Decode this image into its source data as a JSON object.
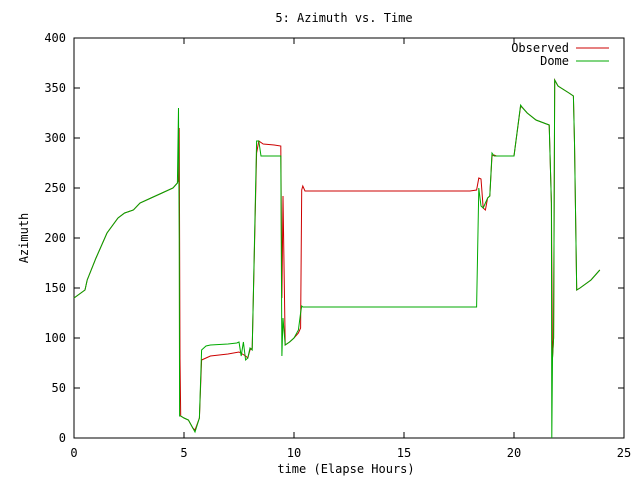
{
  "chart_data": {
    "type": "line",
    "title": "5: Azimuth vs. Time",
    "xlabel": "time (Elapse Hours)",
    "ylabel": "Azimuth",
    "xlim": [
      0,
      25
    ],
    "ylim": [
      0,
      400
    ],
    "xticks": [
      "0",
      "5",
      "10",
      "15",
      "20",
      "25"
    ],
    "yticks": [
      "0",
      "50",
      "100",
      "150",
      "200",
      "250",
      "300",
      "350",
      "400"
    ],
    "grid": false,
    "legend_position": "top-right",
    "series": [
      {
        "name": "Observed",
        "color": "#cc0000",
        "x": [
          0,
          0.5,
          0.6,
          1.0,
          1.5,
          2.0,
          2.3,
          2.7,
          3.0,
          3.5,
          4.0,
          4.5,
          4.7,
          4.75,
          4.78,
          4.8,
          4.82,
          4.85,
          5.0,
          5.2,
          5.4,
          5.5,
          5.7,
          5.8,
          6.0,
          6.2,
          7.0,
          7.5,
          7.8,
          7.9,
          8.0,
          8.1,
          8.3,
          8.4,
          8.6,
          9.1,
          9.4,
          9.45,
          9.5,
          9.6,
          9.8,
          10.0,
          10.2,
          10.3,
          10.35,
          10.4,
          10.5,
          11,
          12,
          14,
          16,
          18,
          18.3,
          18.4,
          18.5,
          18.6,
          18.7,
          18.8,
          18.9,
          19.0,
          19.1,
          19.2,
          19.3,
          20.0,
          20.3,
          20.4,
          20.6,
          21.0,
          21.6,
          21.7,
          21.75,
          21.8,
          21.85,
          21.9,
          22.0,
          22.5,
          22.7,
          22.75,
          22.85,
          23.0,
          23.5,
          23.9
        ],
        "y": [
          140,
          148,
          158,
          180,
          205,
          220,
          225,
          228,
          235,
          240,
          245,
          250,
          255,
          258,
          310,
          200,
          80,
          22,
          20,
          18,
          10,
          8,
          20,
          78,
          80,
          82,
          84,
          86,
          82,
          80,
          88,
          90,
          285,
          297,
          294,
          293,
          292,
          140,
          242,
          93,
          96,
          100,
          105,
          110,
          248,
          252,
          247,
          247,
          247,
          247,
          247,
          247,
          248,
          260,
          259,
          230,
          228,
          240,
          242,
          282,
          283,
          282,
          282,
          282,
          332,
          330,
          325,
          318,
          313,
          235,
          80,
          100,
          358,
          356,
          352,
          345,
          342,
          295,
          148,
          150,
          158,
          168
        ]
      },
      {
        "name": "Dome",
        "color": "#00aa00",
        "x": [
          0,
          0.5,
          0.6,
          1.0,
          1.5,
          2.0,
          2.3,
          2.7,
          3.0,
          3.5,
          4.0,
          4.5,
          4.7,
          4.75,
          4.78,
          4.8,
          4.82,
          4.85,
          5.0,
          5.2,
          5.4,
          5.5,
          5.7,
          5.8,
          6.0,
          6.2,
          7.0,
          7.4,
          7.5,
          7.6,
          7.7,
          7.8,
          7.9,
          8.0,
          8.1,
          8.3,
          8.4,
          8.5,
          9.4,
          9.45,
          9.5,
          9.6,
          9.8,
          10.0,
          10.2,
          10.3,
          10.35,
          10.4,
          11,
          14,
          16,
          18,
          18.3,
          18.4,
          18.5,
          18.6,
          18.7,
          18.8,
          18.9,
          19.0,
          19.1,
          19.2,
          19.3,
          20.0,
          20.3,
          20.4,
          20.6,
          21.0,
          21.6,
          21.7,
          21.72,
          21.75,
          21.8,
          21.85,
          21.9,
          22.0,
          22.5,
          22.7,
          22.75,
          22.85,
          23.0,
          23.5,
          23.9
        ],
        "y": [
          140,
          148,
          158,
          180,
          205,
          220,
          225,
          228,
          235,
          240,
          245,
          250,
          255,
          330,
          200,
          22,
          22,
          22,
          20,
          18,
          10,
          6,
          20,
          88,
          92,
          93,
          94,
          95,
          96,
          82,
          96,
          78,
          80,
          90,
          88,
          297,
          297,
          282,
          282,
          82,
          120,
          93,
          96,
          100,
          108,
          125,
          132,
          131,
          131,
          131,
          131,
          131,
          131,
          250,
          232,
          230,
          235,
          240,
          242,
          285,
          282,
          282,
          282,
          282,
          333,
          330,
          325,
          318,
          313,
          235,
          0,
          80,
          100,
          358,
          356,
          352,
          345,
          342,
          295,
          148,
          150,
          158,
          168
        ]
      }
    ]
  }
}
